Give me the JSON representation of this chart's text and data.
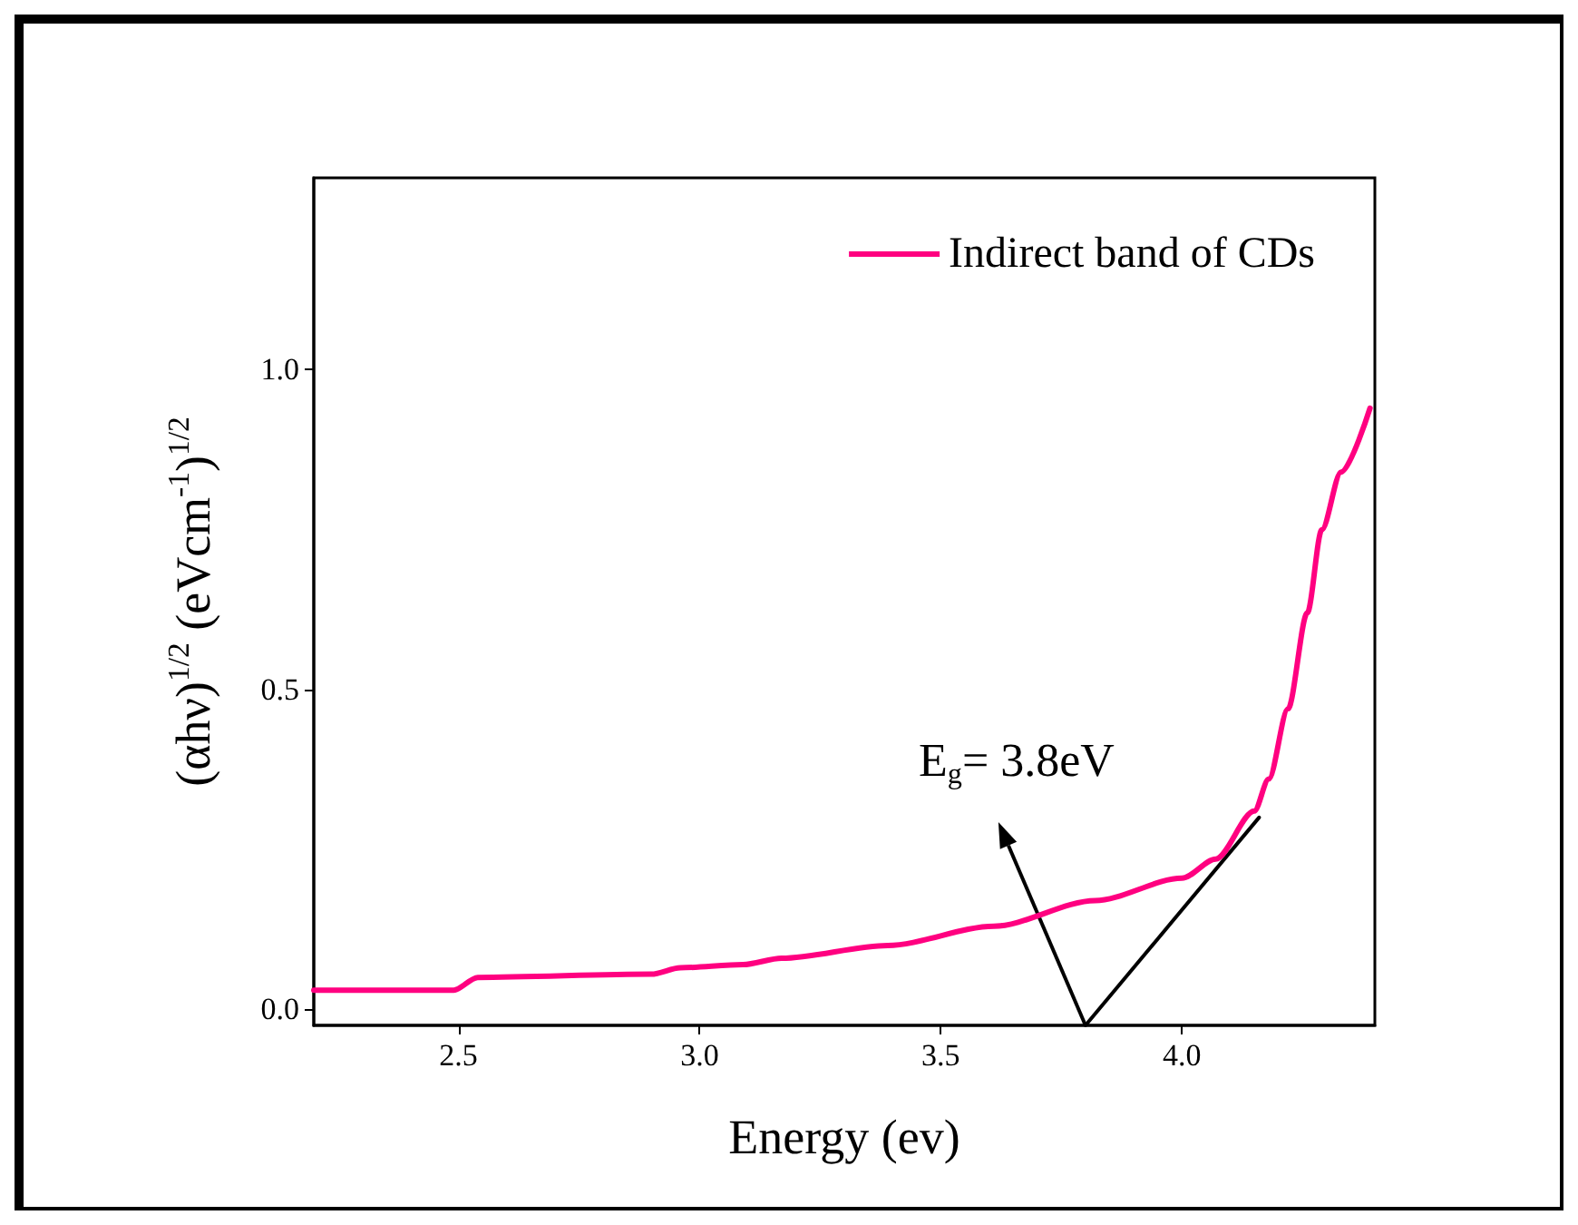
{
  "chart_data": {
    "type": "line",
    "xlabel": "Energy (ev)",
    "ylabel": "(αhν)$^{1/2}$ (eVcm$^{-1}$)$^{1/2}$",
    "series": [
      {
        "name": "Indirect band of CDs",
        "color": "#ff0080",
        "x": [
          2.2,
          2.49,
          2.54,
          2.9,
          2.96,
          3.09,
          3.17,
          3.39,
          3.61,
          3.82,
          4.0,
          4.07,
          4.15,
          4.18,
          4.22,
          4.26,
          4.29,
          4.33,
          4.39
        ],
        "values": [
          0.03,
          0.03,
          0.05,
          0.055,
          0.065,
          0.07,
          0.08,
          0.1,
          0.13,
          0.17,
          0.205,
          0.235,
          0.31,
          0.36,
          0.47,
          0.62,
          0.75,
          0.84,
          0.94
        ]
      },
      {
        "type": "line",
        "color": "#000000",
        "x": [
          3.8,
          4.16
        ],
        "values": [
          -0.025,
          0.3
        ]
      }
    ],
    "xlim": [
      2.2,
      4.4
    ],
    "ylim": [
      -0.025,
      1.3
    ],
    "xticks": [
      2.5,
      {
        "value": 3,
        "label": "3.0"
      },
      3.5,
      {
        "value": 4,
        "label": "4.0"
      }
    ],
    "yticks": [
      {
        "value": 0,
        "label": "0.0"
      },
      0.5,
      {
        "value": 1,
        "label": "1.0"
      }
    ],
    "annotations": [
      {
        "text": "E$_{g}$= 3.8eV",
        "x": 3.8,
        "y": -0.025
      }
    ],
    "grid": false,
    "legend": "top right",
    "marker": "none",
    "line_style": "solid"
  }
}
